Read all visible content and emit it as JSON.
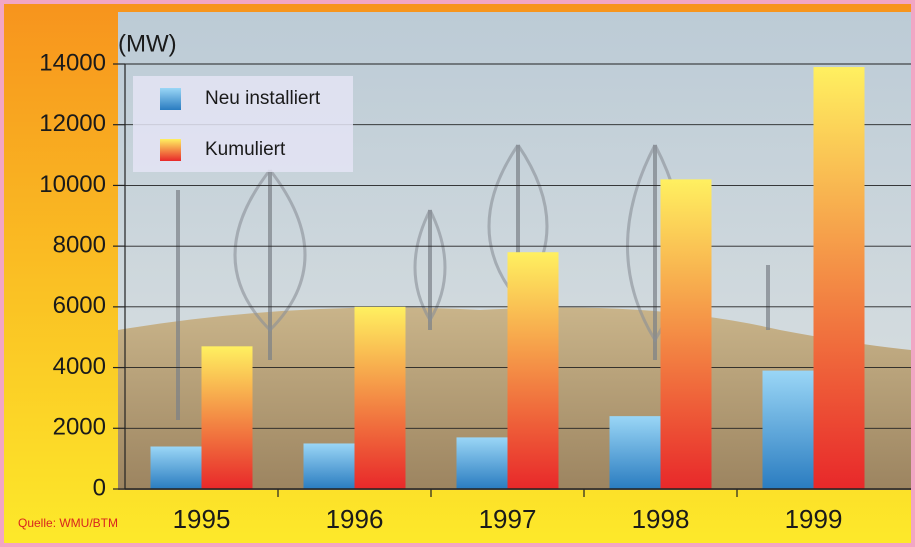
{
  "chart_data": {
    "type": "bar",
    "unit_label": "(MW)",
    "source": "Quelle: WMU/BTM",
    "categories": [
      "1995",
      "1996",
      "1997",
      "1998",
      "1999"
    ],
    "series": [
      {
        "name": "Neu installiert",
        "colors": [
          "#9ad6f6",
          "#2a7cc0"
        ],
        "values": [
          1400,
          1500,
          1700,
          2400,
          3900
        ]
      },
      {
        "name": "Kumuliert",
        "colors": [
          "#fff060",
          "#e8282a"
        ],
        "values": [
          4700,
          6000,
          7800,
          10200,
          13900
        ]
      }
    ],
    "ylim": [
      0,
      14000
    ],
    "yticks": [
      0,
      2000,
      4000,
      6000,
      8000,
      10000,
      12000,
      14000
    ],
    "grid": true
  }
}
